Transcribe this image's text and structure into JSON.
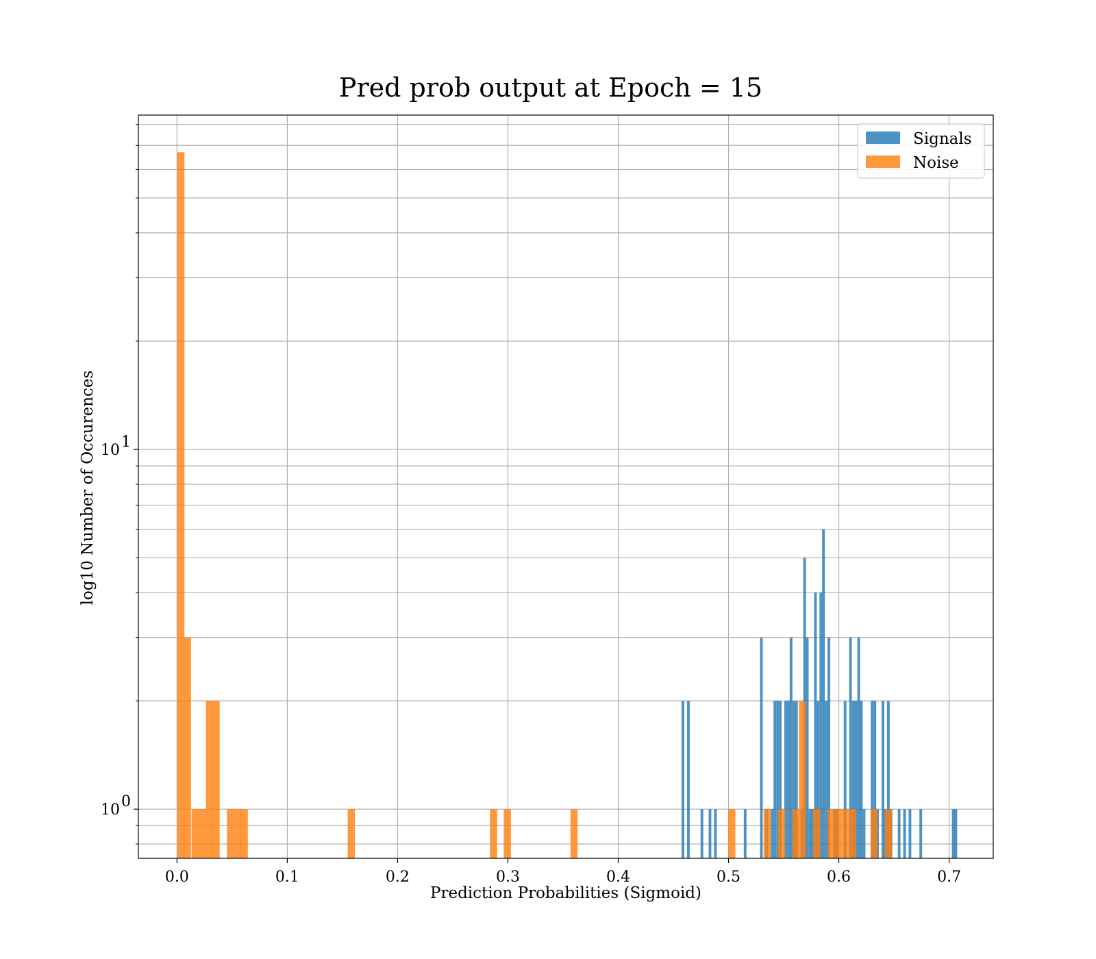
{
  "chart_data": {
    "type": "bar",
    "title": "Pred prob output at Epoch = 15",
    "xlabel": "Prediction Probabilities (Sigmoid)",
    "ylabel": "log10 Number of Occurences",
    "xlim": [
      -0.035,
      0.74
    ],
    "ylim": [
      0.73,
      85
    ],
    "yscale": "log",
    "grid": true,
    "legend_position": "top-right",
    "x_ticks": [
      0.0,
      0.1,
      0.2,
      0.3,
      0.4,
      0.5,
      0.6,
      0.7
    ],
    "x_tick_labels": [
      "0.0",
      "0.1",
      "0.2",
      "0.3",
      "0.4",
      "0.5",
      "0.6",
      "0.7"
    ],
    "y_major_ticks": [
      {
        "value": 1,
        "base": "10",
        "exp": "0"
      },
      {
        "value": 10,
        "base": "10",
        "exp": "1"
      }
    ],
    "y_minor_ticks": [
      0.8,
      0.9,
      2,
      3,
      4,
      5,
      6,
      7,
      8,
      9,
      20,
      30,
      40,
      50,
      60,
      70,
      80
    ],
    "series": [
      {
        "name": "Signals",
        "color": "#1f77b4",
        "bin_width": 0.00245,
        "bins": [
          {
            "x": 0.4587,
            "count": 2
          },
          {
            "x": 0.4636,
            "count": 2
          },
          {
            "x": 0.4759,
            "count": 1
          },
          {
            "x": 0.4832,
            "count": 1
          },
          {
            "x": 0.4881,
            "count": 1
          },
          {
            "x": 0.5151,
            "count": 1
          },
          {
            "x": 0.5298,
            "count": 3
          },
          {
            "x": 0.5347,
            "count": 1
          },
          {
            "x": 0.5396,
            "count": 1
          },
          {
            "x": 0.542,
            "count": 2
          },
          {
            "x": 0.5445,
            "count": 2
          },
          {
            "x": 0.5469,
            "count": 2
          },
          {
            "x": 0.5518,
            "count": 2
          },
          {
            "x": 0.5543,
            "count": 2
          },
          {
            "x": 0.5567,
            "count": 3
          },
          {
            "x": 0.5592,
            "count": 2
          },
          {
            "x": 0.5616,
            "count": 2
          },
          {
            "x": 0.5665,
            "count": 1
          },
          {
            "x": 0.569,
            "count": 5
          },
          {
            "x": 0.5714,
            "count": 3
          },
          {
            "x": 0.5739,
            "count": 1
          },
          {
            "x": 0.5763,
            "count": 1
          },
          {
            "x": 0.5788,
            "count": 4
          },
          {
            "x": 0.5812,
            "count": 2
          },
          {
            "x": 0.5837,
            "count": 4
          },
          {
            "x": 0.5861,
            "count": 6
          },
          {
            "x": 0.5886,
            "count": 2
          },
          {
            "x": 0.591,
            "count": 3
          },
          {
            "x": 0.5959,
            "count": 1
          },
          {
            "x": 0.5984,
            "count": 1
          },
          {
            "x": 0.6057,
            "count": 2
          },
          {
            "x": 0.6106,
            "count": 3
          },
          {
            "x": 0.6131,
            "count": 2
          },
          {
            "x": 0.6155,
            "count": 2
          },
          {
            "x": 0.618,
            "count": 3
          },
          {
            "x": 0.6204,
            "count": 2
          },
          {
            "x": 0.6229,
            "count": 1
          },
          {
            "x": 0.6302,
            "count": 2
          },
          {
            "x": 0.6327,
            "count": 2
          },
          {
            "x": 0.6351,
            "count": 1
          },
          {
            "x": 0.64,
            "count": 2
          },
          {
            "x": 0.6424,
            "count": 1
          },
          {
            "x": 0.6449,
            "count": 2
          },
          {
            "x": 0.6473,
            "count": 1
          },
          {
            "x": 0.6547,
            "count": 1
          },
          {
            "x": 0.6596,
            "count": 1
          },
          {
            "x": 0.6645,
            "count": 1
          },
          {
            "x": 0.6743,
            "count": 1
          },
          {
            "x": 0.7037,
            "count": 1
          },
          {
            "x": 0.7061,
            "count": 1
          }
        ]
      },
      {
        "name": "Noise",
        "color": "#ff7f0e",
        "bin_width": 0.0065,
        "bins": [
          {
            "x": 0.0035,
            "count": 67
          },
          {
            "x": 0.0095,
            "count": 3
          },
          {
            "x": 0.0165,
            "count": 1
          },
          {
            "x": 0.023,
            "count": 1
          },
          {
            "x": 0.0295,
            "count": 2
          },
          {
            "x": 0.0355,
            "count": 2
          },
          {
            "x": 0.0485,
            "count": 1
          },
          {
            "x": 0.055,
            "count": 1
          },
          {
            "x": 0.061,
            "count": 1
          },
          {
            "x": 0.158,
            "count": 1
          },
          {
            "x": 0.287,
            "count": 1
          },
          {
            "x": 0.2995,
            "count": 1
          },
          {
            "x": 0.36,
            "count": 1
          },
          {
            "x": 0.503,
            "count": 1
          },
          {
            "x": 0.535,
            "count": 1
          },
          {
            "x": 0.548,
            "count": 1
          },
          {
            "x": 0.561,
            "count": 1
          },
          {
            "x": 0.567,
            "count": 2
          },
          {
            "x": 0.58,
            "count": 1
          },
          {
            "x": 0.593,
            "count": 1
          },
          {
            "x": 0.5995,
            "count": 1
          },
          {
            "x": 0.606,
            "count": 1
          },
          {
            "x": 0.6125,
            "count": 1
          },
          {
            "x": 0.632,
            "count": 1
          },
          {
            "x": 0.645,
            "count": 1
          }
        ]
      }
    ]
  }
}
